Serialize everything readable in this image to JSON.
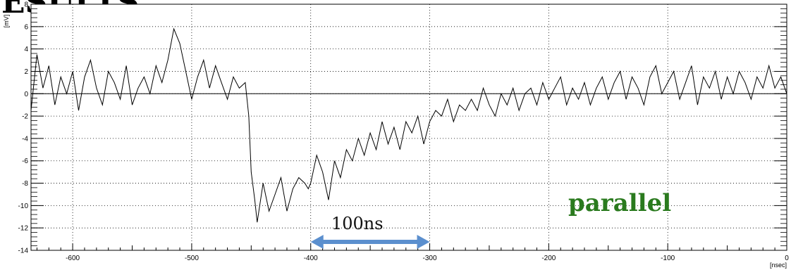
{
  "heading_fragment": "ESULTS",
  "chart_data": {
    "type": "line",
    "title": "",
    "xlabel": "[nsec]",
    "ylabel": "[mV]",
    "xlim": [
      -635,
      0
    ],
    "ylim": [
      -14,
      8
    ],
    "grid": true,
    "x_ticks": [
      -600,
      -500,
      -400,
      -300,
      -200,
      -100,
      0
    ],
    "y_ticks": [
      -14,
      -12,
      -10,
      -8,
      -6,
      -4,
      -2,
      0,
      2,
      4,
      6,
      8
    ],
    "zero_line": true,
    "line_color": "#000000",
    "series": [
      {
        "x": [
          -635,
          -630,
          -625,
          -620,
          -615,
          -610,
          -605,
          -600,
          -595,
          -590,
          -585,
          -580,
          -575,
          -570,
          -565,
          -560,
          -555,
          -550,
          -545,
          -540,
          -535,
          -530,
          -525,
          -520,
          -515,
          -510,
          -505,
          -500,
          -495,
          -490,
          -485,
          -480,
          -475,
          -470,
          -465,
          -460,
          -455,
          -452,
          -450,
          -447,
          -445,
          -440,
          -435,
          -430,
          -425,
          -420,
          -415,
          -410,
          -405,
          -402,
          -400,
          -395,
          -390,
          -385,
          -380,
          -375,
          -370,
          -365,
          -360,
          -355,
          -350,
          -345,
          -340,
          -335,
          -330,
          -325,
          -320,
          -315,
          -310,
          -305,
          -300,
          -295,
          -290,
          -285,
          -280,
          -275,
          -270,
          -265,
          -260,
          -255,
          -250,
          -245,
          -240,
          -235,
          -230,
          -225,
          -220,
          -215,
          -210,
          -205,
          -200,
          -195,
          -190,
          -185,
          -180,
          -175,
          -170,
          -165,
          -160,
          -155,
          -150,
          -145,
          -140,
          -135,
          -130,
          -125,
          -120,
          -115,
          -110,
          -105,
          -100,
          -95,
          -90,
          -85,
          -80,
          -75,
          -70,
          -65,
          -60,
          -55,
          -50,
          -45,
          -40,
          -35,
          -30,
          -25,
          -20,
          -15,
          -10,
          -5,
          0
        ],
        "y": [
          -1.5,
          3.5,
          0.5,
          2.5,
          -1,
          1.5,
          0,
          2,
          -1.5,
          1.5,
          3,
          0.5,
          -1,
          2,
          1,
          -0.5,
          2.5,
          -1,
          0.5,
          1.5,
          0,
          2.5,
          1,
          3,
          5.8,
          4.5,
          2,
          -0.5,
          1.5,
          3,
          0.5,
          2.5,
          1,
          -0.5,
          1.5,
          0.5,
          1,
          -2,
          -7,
          -9.5,
          -11.5,
          -8,
          -10.5,
          -9,
          -7.5,
          -10.5,
          -8.5,
          -7.5,
          -8,
          -8.5,
          -8,
          -5.5,
          -7,
          -9.5,
          -6,
          -7.5,
          -5,
          -6,
          -4,
          -5.5,
          -3.5,
          -5,
          -2.5,
          -4.5,
          -3,
          -5,
          -2.5,
          -3.5,
          -2,
          -4.5,
          -2.5,
          -1.5,
          -2,
          -0.5,
          -2.5,
          -1,
          -1.5,
          -0.5,
          -1.5,
          0.5,
          -1,
          -2,
          0,
          -1,
          0.5,
          -1.5,
          0,
          0.5,
          -1,
          1,
          -0.5,
          0.5,
          1.5,
          -1,
          0.5,
          -0.5,
          1,
          -1,
          0.5,
          1.5,
          -0.5,
          1,
          2,
          -0.5,
          1.5,
          0.5,
          -1,
          1.5,
          2.5,
          0,
          1,
          2,
          -0.5,
          1,
          2.5,
          -1,
          1.5,
          0.5,
          2,
          -0.5,
          1.5,
          0,
          2,
          1,
          -0.5,
          1.5,
          0.5,
          2.5,
          0.5,
          1.5,
          0
        ]
      }
    ],
    "annotations": [
      {
        "text": "parallel",
        "color": "#2a7a1e"
      },
      {
        "text": "100ns",
        "arrow_from": -400,
        "arrow_to": -300,
        "arrow_color": "#5b8fce"
      }
    ]
  }
}
